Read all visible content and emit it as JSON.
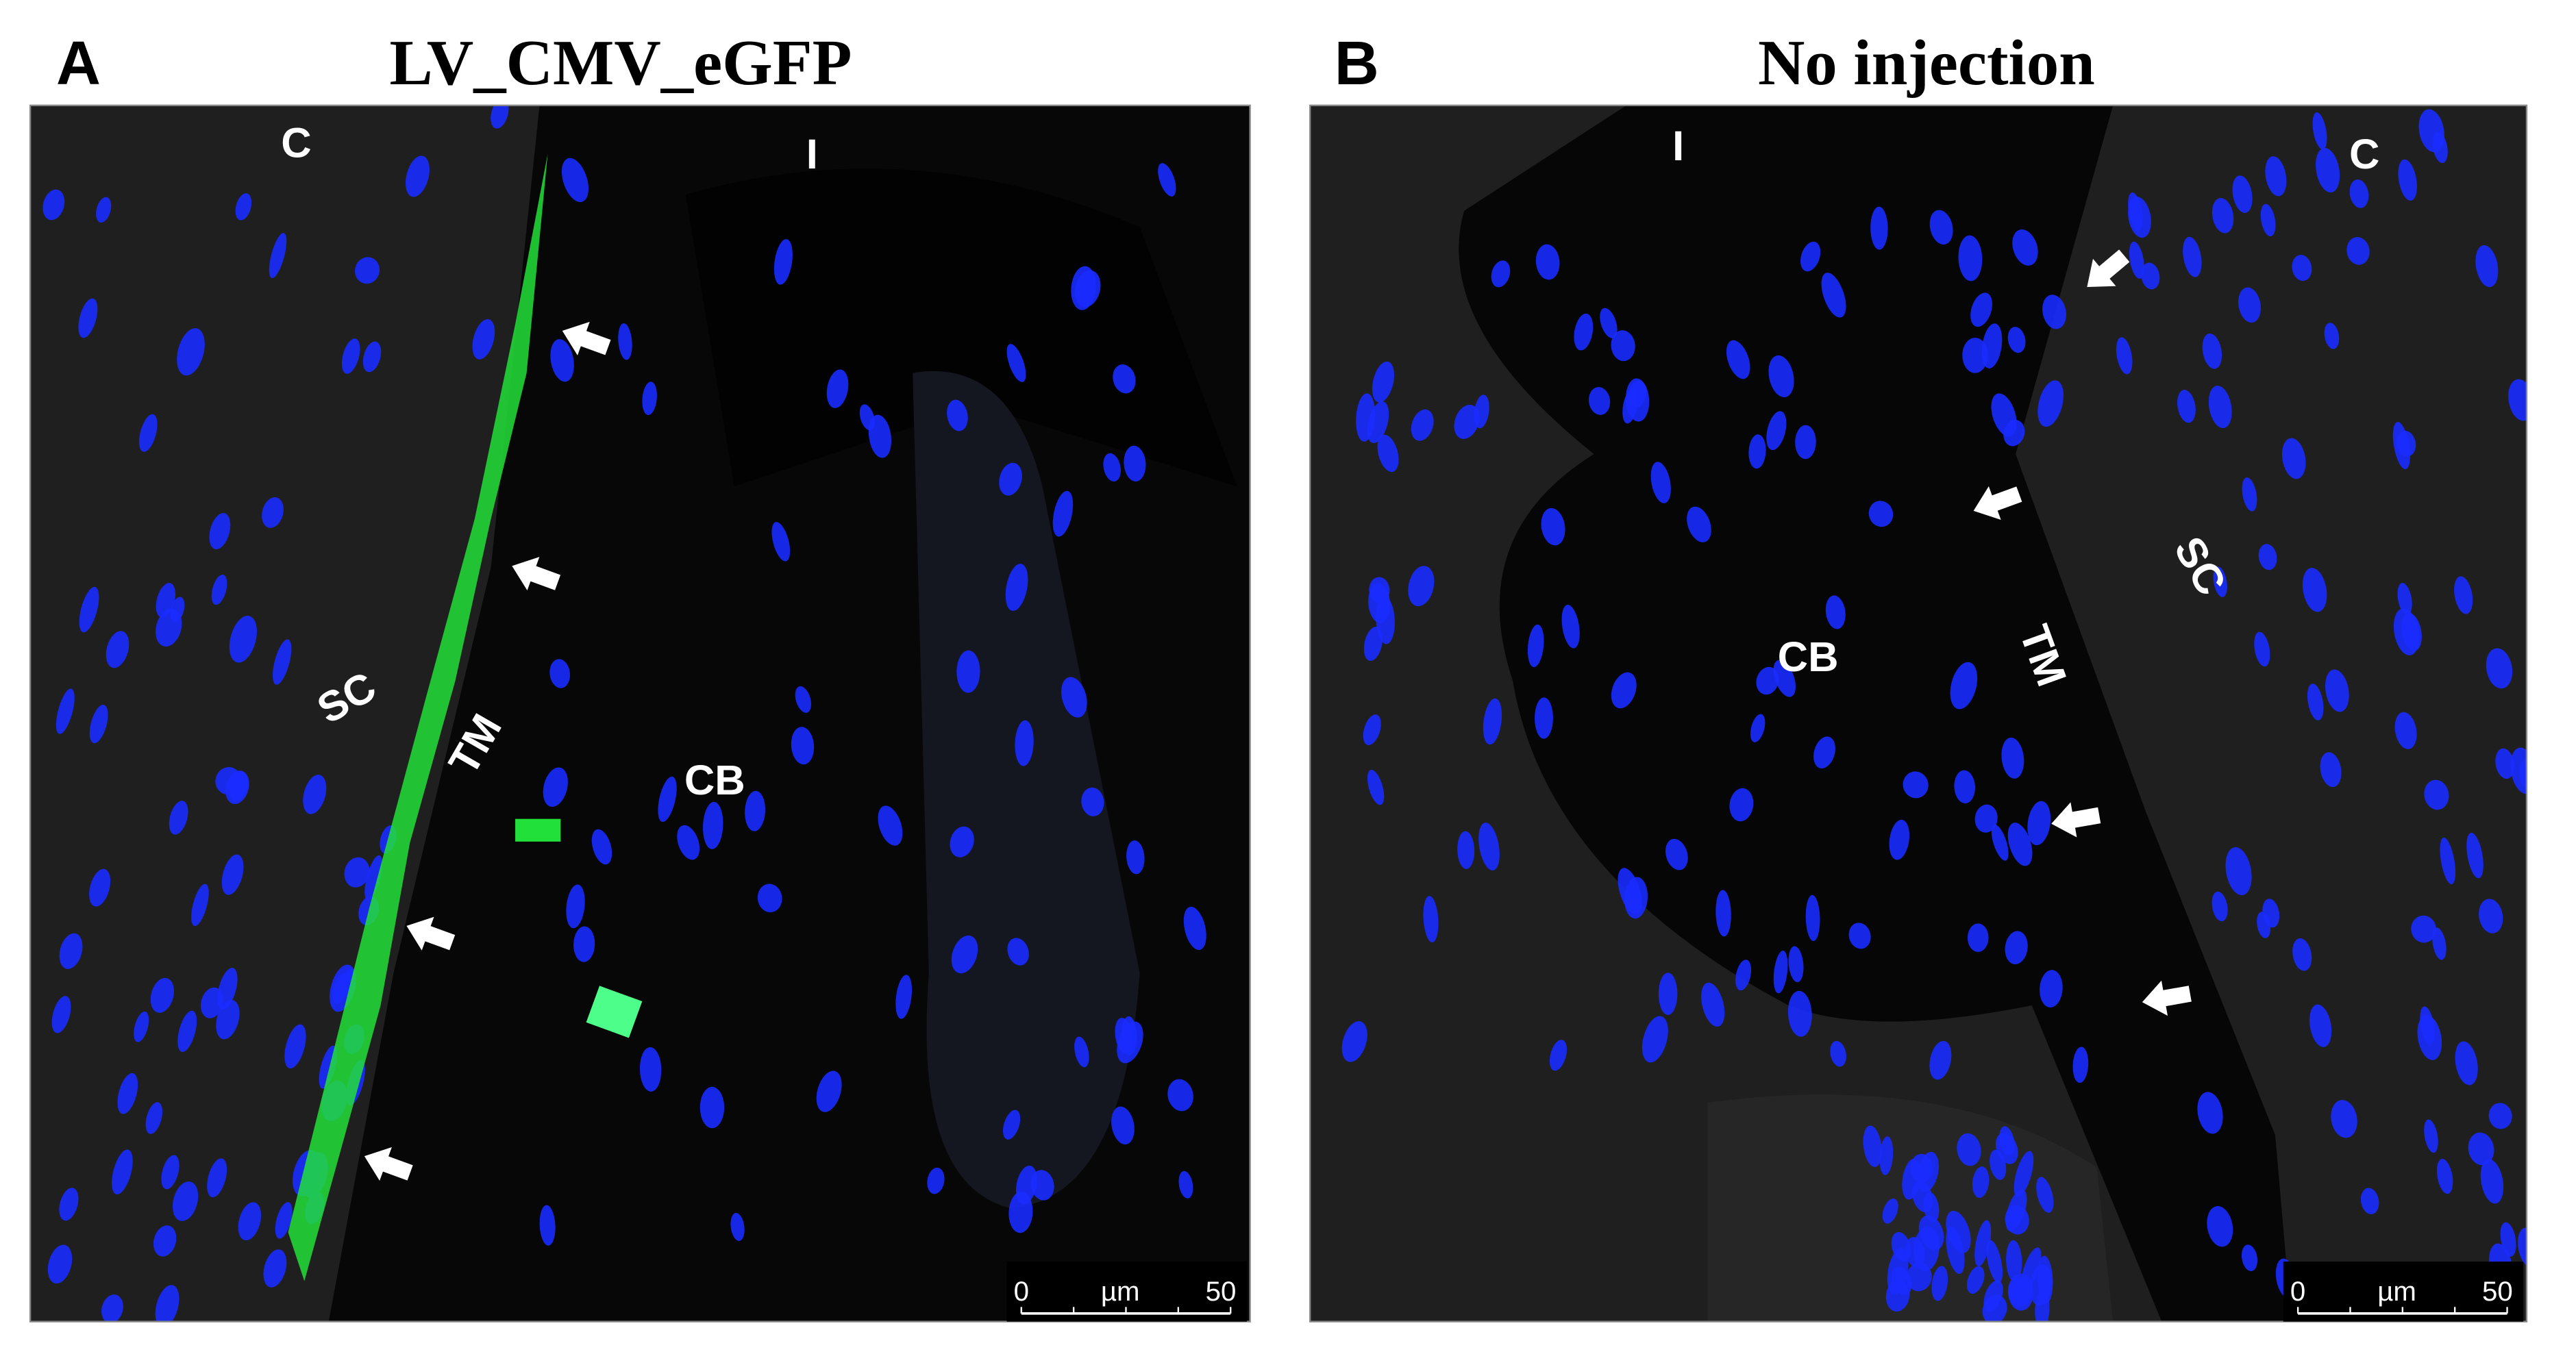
{
  "panels": [
    {
      "letter": "A",
      "title": "LV_CMV_eGFP",
      "labels": [
        "C",
        "I",
        "SC",
        "TM",
        "CB"
      ],
      "scale_bar": {
        "start": "0",
        "unit": "µm",
        "end": "50"
      }
    },
    {
      "letter": "B",
      "title": "No injection",
      "labels": [
        "I",
        "C",
        "SC",
        "CB",
        "TM"
      ],
      "scale_bar": {
        "start": "0",
        "unit": "µm",
        "end": "50"
      }
    }
  ]
}
